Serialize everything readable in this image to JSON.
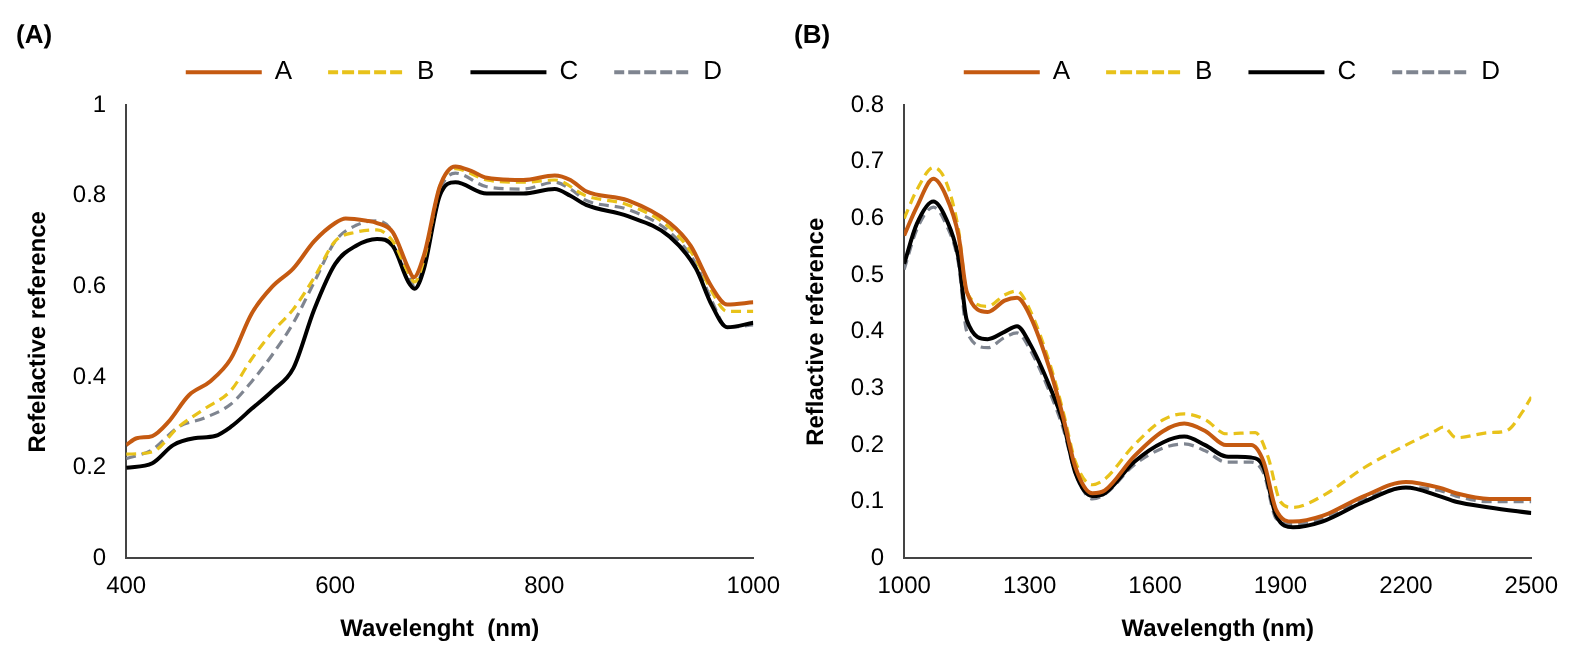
{
  "chart_data": [
    {
      "type": "line",
      "title": "(A)",
      "xlabel": "Wavelenght  (nm)",
      "ylabel": "Refelactive reference",
      "xlim": [
        400,
        1000
      ],
      "xticks": [
        400,
        600,
        800,
        1000
      ],
      "ylim": [
        0,
        1
      ],
      "yticks": [
        0,
        0.2,
        0.4,
        0.6,
        0.8,
        1
      ],
      "grid": false,
      "legend": "top right",
      "marker": "none",
      "series": [
        {
          "name": "A",
          "color": "#c55a11",
          "line_style": "solid",
          "x": [
            400,
            410,
            425,
            440,
            460,
            480,
            500,
            520,
            540,
            560,
            580,
            600,
            610,
            630,
            640,
            655,
            670,
            675,
            685,
            700,
            715,
            730,
            745,
            780,
            810,
            825,
            840,
            880,
            920,
            940,
            960,
            975,
            1000
          ],
          "values": [
            0.25,
            0.265,
            0.27,
            0.3,
            0.36,
            0.39,
            0.44,
            0.54,
            0.6,
            0.64,
            0.7,
            0.74,
            0.75,
            0.745,
            0.74,
            0.72,
            0.64,
            0.62,
            0.67,
            0.82,
            0.865,
            0.855,
            0.84,
            0.835,
            0.845,
            0.835,
            0.81,
            0.79,
            0.74,
            0.69,
            0.6,
            0.56,
            0.565
          ]
        },
        {
          "name": "B",
          "color": "#e8c21a",
          "line_style": "dashed",
          "x": [
            400,
            425,
            450,
            475,
            500,
            520,
            540,
            560,
            580,
            600,
            620,
            640,
            655,
            670,
            676,
            685,
            700,
            715,
            745,
            780,
            810,
            840,
            880,
            920,
            945,
            960,
            975,
            1000
          ],
          "values": [
            0.23,
            0.235,
            0.29,
            0.33,
            0.37,
            0.44,
            0.5,
            0.55,
            0.62,
            0.7,
            0.72,
            0.725,
            0.7,
            0.63,
            0.61,
            0.66,
            0.82,
            0.86,
            0.835,
            0.83,
            0.835,
            0.8,
            0.78,
            0.73,
            0.66,
            0.59,
            0.545,
            0.545
          ]
        },
        {
          "name": "C",
          "color": "#000000",
          "line_style": "solid",
          "x": [
            400,
            425,
            445,
            465,
            485,
            500,
            520,
            540,
            560,
            580,
            600,
            620,
            640,
            655,
            670,
            676,
            685,
            700,
            715,
            745,
            780,
            810,
            825,
            840,
            880,
            920,
            945,
            960,
            975,
            1000
          ],
          "values": [
            0.2,
            0.21,
            0.25,
            0.265,
            0.27,
            0.29,
            0.33,
            0.37,
            0.42,
            0.55,
            0.65,
            0.69,
            0.705,
            0.69,
            0.61,
            0.595,
            0.64,
            0.8,
            0.83,
            0.805,
            0.805,
            0.815,
            0.8,
            0.78,
            0.755,
            0.71,
            0.64,
            0.56,
            0.51,
            0.52
          ]
        },
        {
          "name": "D",
          "color": "#7f8590",
          "line_style": "dashed",
          "x": [
            400,
            425,
            450,
            475,
            500,
            520,
            540,
            560,
            580,
            600,
            620,
            640,
            655,
            670,
            676,
            685,
            700,
            715,
            745,
            780,
            810,
            825,
            840,
            880,
            920,
            945,
            960,
            975,
            1000
          ],
          "values": [
            0.22,
            0.24,
            0.29,
            0.31,
            0.34,
            0.39,
            0.45,
            0.52,
            0.61,
            0.7,
            0.735,
            0.745,
            0.72,
            0.63,
            0.6,
            0.65,
            0.81,
            0.85,
            0.82,
            0.815,
            0.83,
            0.815,
            0.79,
            0.77,
            0.72,
            0.65,
            0.57,
            0.51,
            0.515
          ]
        }
      ]
    },
    {
      "type": "line",
      "title": "(B)",
      "xlabel": "Wavelength (nm)",
      "ylabel": "Reflactive reference",
      "xlim": [
        1000,
        2500
      ],
      "xticks": [
        1000,
        1300,
        1600,
        1900,
        2200,
        2500
      ],
      "ylim": [
        0,
        0.8
      ],
      "yticks": [
        0,
        0.1,
        0.2,
        0.3,
        0.4,
        0.5,
        0.6,
        0.7,
        0.8
      ],
      "grid": false,
      "legend": "top right",
      "marker": "none",
      "series": [
        {
          "name": "A",
          "color": "#c55a11",
          "line_style": "solid",
          "x": [
            1000,
            1030,
            1070,
            1100,
            1130,
            1150,
            1200,
            1240,
            1270,
            1300,
            1350,
            1380,
            1410,
            1450,
            1480,
            1550,
            1620,
            1670,
            1720,
            1770,
            1830,
            1860,
            1890,
            1930,
            2000,
            2100,
            2200,
            2280,
            2320,
            2400,
            2500
          ],
          "values": [
            0.57,
            0.62,
            0.67,
            0.64,
            0.57,
            0.47,
            0.435,
            0.455,
            0.46,
            0.43,
            0.33,
            0.25,
            0.16,
            0.115,
            0.12,
            0.18,
            0.225,
            0.238,
            0.225,
            0.2,
            0.2,
            0.17,
            0.085,
            0.065,
            0.075,
            0.11,
            0.135,
            0.125,
            0.115,
            0.105,
            0.105
          ]
        },
        {
          "name": "B",
          "color": "#e8c21a",
          "line_style": "dashed",
          "x": [
            1000,
            1030,
            1070,
            1100,
            1130,
            1150,
            1200,
            1240,
            1270,
            1300,
            1350,
            1380,
            1410,
            1450,
            1480,
            1550,
            1620,
            1670,
            1720,
            1770,
            1840,
            1870,
            1900,
            1930,
            2000,
            2100,
            2200,
            2270,
            2290,
            2320,
            2400,
            2440,
            2480,
            2500
          ],
          "values": [
            0.6,
            0.65,
            0.69,
            0.665,
            0.58,
            0.47,
            0.445,
            0.465,
            0.472,
            0.44,
            0.34,
            0.26,
            0.17,
            0.13,
            0.14,
            0.2,
            0.245,
            0.255,
            0.245,
            0.22,
            0.222,
            0.18,
            0.1,
            0.09,
            0.11,
            0.16,
            0.2,
            0.225,
            0.232,
            0.213,
            0.222,
            0.225,
            0.26,
            0.285
          ]
        },
        {
          "name": "C",
          "color": "#000000",
          "line_style": "solid",
          "x": [
            1000,
            1030,
            1070,
            1100,
            1130,
            1150,
            1200,
            1240,
            1270,
            1300,
            1350,
            1380,
            1410,
            1450,
            1480,
            1550,
            1620,
            1670,
            1720,
            1770,
            1830,
            1860,
            1890,
            1930,
            2000,
            2100,
            2200,
            2280,
            2320,
            2400,
            2500
          ],
          "values": [
            0.52,
            0.59,
            0.63,
            0.6,
            0.53,
            0.42,
            0.387,
            0.4,
            0.41,
            0.38,
            0.3,
            0.24,
            0.15,
            0.11,
            0.115,
            0.17,
            0.205,
            0.215,
            0.2,
            0.18,
            0.178,
            0.16,
            0.075,
            0.055,
            0.065,
            0.1,
            0.125,
            0.11,
            0.1,
            0.09,
            0.08
          ]
        },
        {
          "name": "D",
          "color": "#7f8590",
          "line_style": "dashed",
          "x": [
            1000,
            1030,
            1070,
            1100,
            1130,
            1150,
            1200,
            1240,
            1270,
            1300,
            1350,
            1380,
            1410,
            1450,
            1480,
            1550,
            1620,
            1670,
            1720,
            1770,
            1830,
            1860,
            1890,
            1930,
            2000,
            2100,
            2200,
            2280,
            2320,
            2400,
            2500
          ],
          "values": [
            0.51,
            0.58,
            0.62,
            0.59,
            0.52,
            0.4,
            0.372,
            0.39,
            0.398,
            0.37,
            0.29,
            0.23,
            0.15,
            0.105,
            0.113,
            0.165,
            0.195,
            0.202,
            0.19,
            0.17,
            0.17,
            0.15,
            0.07,
            0.06,
            0.07,
            0.105,
            0.125,
            0.12,
            0.11,
            0.1,
            0.1
          ]
        }
      ]
    }
  ]
}
